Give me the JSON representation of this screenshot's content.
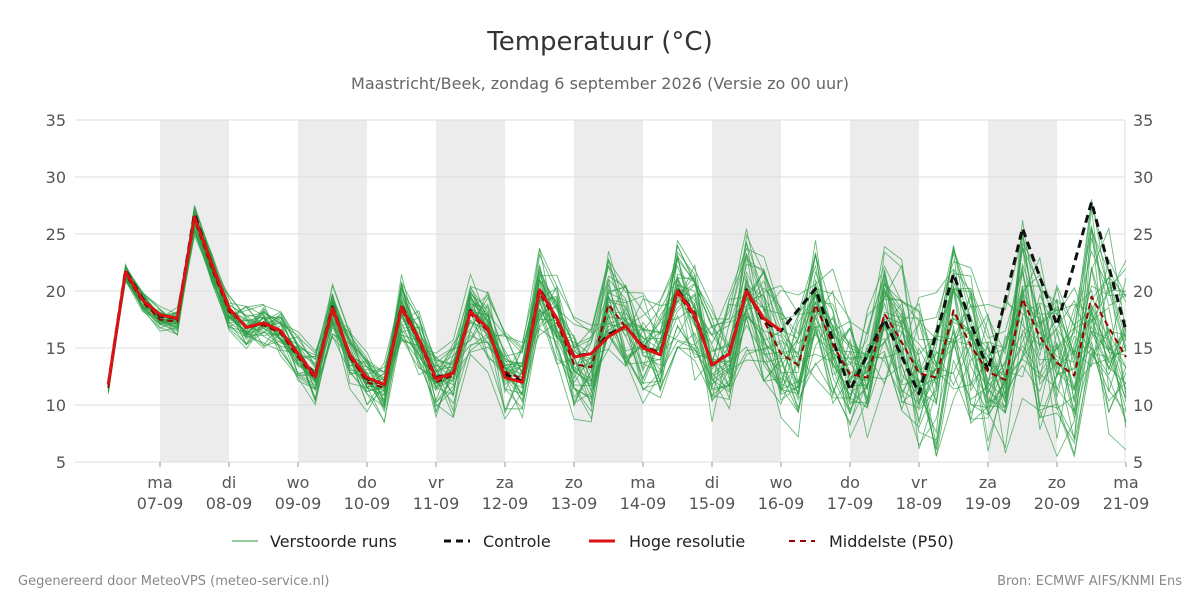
{
  "title": "Temperatuur (°C)",
  "subtitle": "Maastricht/Beek, zondag  6 september 2026 (Versie zo 00 uur)",
  "footer_left": "Gegenereerd door MeteoVPS (meteo-service.nl)",
  "footer_right": "Bron: ECMWF AIFS/KNMI Ens",
  "colors": {
    "ensemble": "#2e9e46",
    "control": "#111111",
    "hires": "#dd1111",
    "median": "#990000",
    "weekend_band": "#ececec",
    "grid": "#dddddd"
  },
  "chart_data": {
    "type": "line",
    "title": "Temperatuur (°C)",
    "ylim": [
      5,
      35
    ],
    "y_ticks": [
      5,
      10,
      15,
      20,
      25,
      30,
      35
    ],
    "grid": true,
    "legend_position": "bottom",
    "x_unit": "days",
    "x_ticks": [
      {
        "day": "ma",
        "date": "07-09",
        "x": 1
      },
      {
        "day": "di",
        "date": "08-09",
        "x": 2
      },
      {
        "day": "wo",
        "date": "09-09",
        "x": 3
      },
      {
        "day": "do",
        "date": "10-09",
        "x": 4
      },
      {
        "day": "vr",
        "date": "11-09",
        "x": 5
      },
      {
        "day": "za",
        "date": "12-09",
        "x": 6
      },
      {
        "day": "zo",
        "date": "13-09",
        "x": 7
      },
      {
        "day": "ma",
        "date": "14-09",
        "x": 8
      },
      {
        "day": "di",
        "date": "15-09",
        "x": 9
      },
      {
        "day": "wo",
        "date": "16-09",
        "x": 10
      },
      {
        "day": "do",
        "date": "17-09",
        "x": 11
      },
      {
        "day": "vr",
        "date": "18-09",
        "x": 12
      },
      {
        "day": "za",
        "date": "19-09",
        "x": 13
      },
      {
        "day": "zo",
        "date": "20-09",
        "x": 14
      },
      {
        "day": "ma",
        "date": "21-09",
        "x": 15
      }
    ],
    "shaded_days": [
      [
        1,
        2
      ],
      [
        3,
        4
      ],
      [
        5,
        6
      ],
      [
        7,
        8
      ],
      [
        9,
        10
      ],
      [
        11,
        12
      ],
      [
        13,
        14
      ]
    ],
    "legend": [
      "Verstoorde runs",
      "Controle",
      "Hoge resolutie",
      "Middelste (P50)"
    ],
    "series": [
      {
        "name": "Controle",
        "style": "dashed",
        "x": [
          0.25,
          0.5,
          0.75,
          1.0,
          1.25,
          1.5,
          1.75,
          2.0,
          2.25,
          2.5,
          2.75,
          3.0,
          3.25,
          3.5,
          3.75,
          4.0,
          4.25,
          4.5,
          4.75,
          5.0,
          5.25,
          5.5,
          5.75,
          6.0,
          6.25,
          6.5,
          6.75,
          7.0,
          7.25,
          7.5,
          7.75,
          8.0,
          8.25,
          8.5,
          8.75,
          9.0,
          9.25,
          9.5,
          9.75,
          10.0,
          10.5,
          11.0,
          11.5,
          12.0,
          12.5,
          13.0,
          13.5,
          14.0,
          14.5,
          15.0
        ],
        "y": [
          11.8,
          21.8,
          19.3,
          17.8,
          17.6,
          26.8,
          22.3,
          18.5,
          16.8,
          17.2,
          16.5,
          14.5,
          12.6,
          18.6,
          14.3,
          12.3,
          11.8,
          18.7,
          15.8,
          12.4,
          12.8,
          18.3,
          16.6,
          12.7,
          12.1,
          20.2,
          17.6,
          14.3,
          14.5,
          16.2,
          16.9,
          15.1,
          14.5,
          20.1,
          18.0,
          13.5,
          14.6,
          20.1,
          17.3,
          16.5,
          20.2,
          11.3,
          17.5,
          11.0,
          21.5,
          13.0,
          25.5,
          17.0,
          27.8,
          16.5
        ]
      },
      {
        "name": "Hoge resolutie",
        "style": "solid",
        "x": [
          0.25,
          0.5,
          0.75,
          1.0,
          1.25,
          1.5,
          1.75,
          2.0,
          2.25,
          2.5,
          2.75,
          3.0,
          3.25,
          3.5,
          3.75,
          4.0,
          4.25,
          4.5,
          4.75,
          5.0,
          5.25,
          5.5,
          5.75,
          6.0,
          6.25,
          6.5,
          6.75,
          7.0,
          7.25,
          7.5,
          7.75,
          8.0,
          8.25,
          8.5,
          8.75,
          9.0,
          9.25,
          9.5,
          9.75,
          10.0
        ],
        "y": [
          11.8,
          21.7,
          19.2,
          17.9,
          17.6,
          26.5,
          22.4,
          18.5,
          16.8,
          17.2,
          16.5,
          14.5,
          12.5,
          18.5,
          14.4,
          12.4,
          11.8,
          18.6,
          15.8,
          12.3,
          12.8,
          18.2,
          16.7,
          12.4,
          12.0,
          20.1,
          17.6,
          14.2,
          14.5,
          16.0,
          16.9,
          15.0,
          14.4,
          20.0,
          17.9,
          13.5,
          14.5,
          20.0,
          17.6,
          16.5
        ]
      },
      {
        "name": "Middelste (P50)",
        "style": "dashed",
        "x": [
          0.25,
          0.5,
          0.75,
          1.0,
          1.25,
          1.5,
          1.75,
          2.0,
          2.25,
          2.5,
          2.75,
          3.0,
          3.25,
          3.5,
          3.75,
          4.0,
          4.25,
          4.5,
          4.75,
          5.0,
          5.25,
          5.5,
          5.75,
          6.0,
          6.25,
          6.5,
          6.75,
          7.0,
          7.25,
          7.5,
          7.75,
          8.0,
          8.25,
          8.5,
          8.75,
          9.0,
          9.25,
          9.5,
          9.75,
          10.0,
          10.25,
          10.5,
          10.75,
          11.0,
          11.25,
          11.5,
          11.75,
          12.0,
          12.25,
          12.5,
          12.75,
          13.0,
          13.25,
          13.5,
          13.75,
          14.0,
          14.25,
          14.5,
          14.75,
          15.0
        ],
        "y": [
          11.5,
          21.5,
          19.0,
          17.5,
          17.3,
          26.3,
          22.0,
          18.2,
          16.9,
          17.0,
          16.3,
          14.2,
          12.3,
          18.3,
          14.2,
          12.0,
          11.5,
          18.4,
          15.6,
          12.0,
          12.6,
          18.0,
          16.5,
          12.9,
          12.3,
          19.8,
          17.3,
          13.6,
          13.3,
          18.8,
          16.8,
          15.2,
          14.6,
          19.8,
          17.6,
          13.6,
          14.4,
          19.8,
          17.4,
          14.5,
          13.5,
          18.8,
          15.3,
          12.7,
          12.4,
          18.0,
          15.5,
          12.8,
          12.4,
          18.3,
          15.2,
          12.9,
          12.2,
          19.3,
          16.0,
          13.7,
          12.6,
          19.5,
          16.8,
          14.2
        ]
      }
    ]
  }
}
